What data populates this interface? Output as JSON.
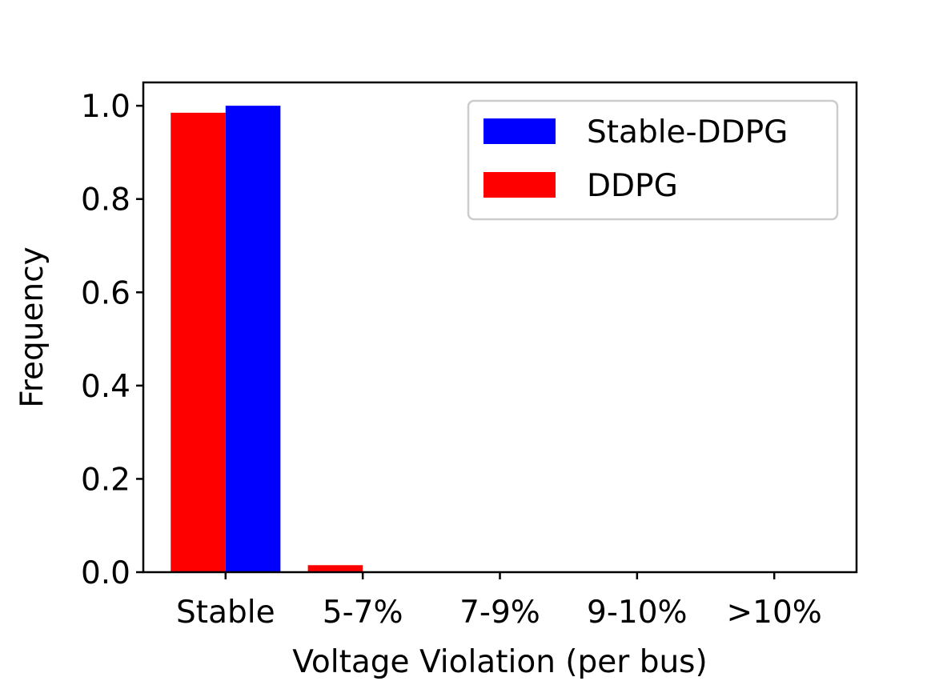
{
  "chart_data": {
    "type": "bar",
    "categories": [
      "Stable",
      "5-7%",
      "7-9%",
      "9-10%",
      ">10%"
    ],
    "series": [
      {
        "name": "DDPG",
        "values": [
          0.985,
          0.015,
          0.0,
          0.0,
          0.0
        ],
        "color": "#ff0000"
      },
      {
        "name": "Stable-DDPG",
        "values": [
          1.0,
          0.0,
          0.0,
          0.0,
          0.0
        ],
        "color": "#0000ff"
      }
    ],
    "legend_order": [
      "Stable-DDPG",
      "DDPG"
    ],
    "title": "",
    "xlabel": "Voltage Violation (per bus)",
    "ylabel": "Frequency",
    "ylim": [
      0,
      1.05
    ],
    "yticks": [
      "0.0",
      "0.2",
      "0.4",
      "0.6",
      "0.8",
      "1.0"
    ],
    "grid": false,
    "legend_position": "top-right"
  }
}
